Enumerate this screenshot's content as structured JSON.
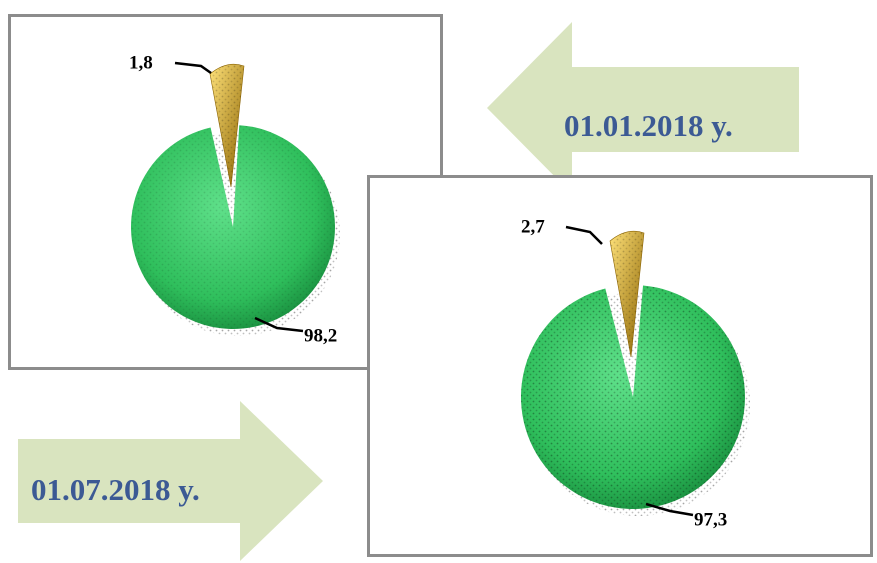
{
  "colors": {
    "green": "#2fbf5c",
    "green_dark": "#178a3c",
    "gold": "#e0a915",
    "gold_dark": "#8a6200",
    "arrow_fill": "#d9e4bf",
    "label_blue": "#3c5a94",
    "frame": "#8c8c8c"
  },
  "chart_data": [
    {
      "type": "pie",
      "date_label": "01.01.2018 y.",
      "slices": [
        {
          "label": "1,8",
          "value": 1.8,
          "color": "#e0a915"
        },
        {
          "label": "98,2",
          "value": 98.2,
          "color": "#2fbf5c"
        }
      ]
    },
    {
      "type": "pie",
      "date_label": "01.07.2018 y.",
      "slices": [
        {
          "label": "2,7",
          "value": 2.7,
          "color": "#e0a915"
        },
        {
          "label": "97,3",
          "value": 97.3,
          "color": "#2fbf5c"
        }
      ]
    }
  ]
}
